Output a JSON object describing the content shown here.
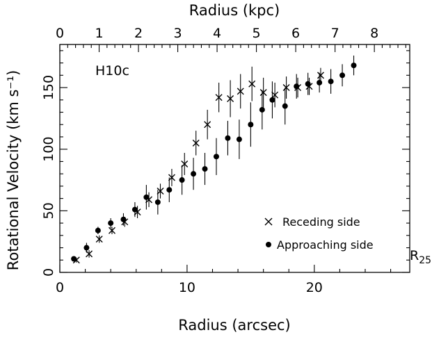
{
  "chart_data": {
    "type": "scatter",
    "xlabel": "Radius (arcsec)",
    "ylabel": "Rotational Velocity (km s⁻¹)",
    "top_xlabel": "Radius (kpc)",
    "xlim": [
      0,
      27.5
    ],
    "ylim": [
      0,
      185
    ],
    "top_xlim": [
      0,
      8.9
    ],
    "x_ticks": [
      0,
      10,
      20
    ],
    "y_ticks": [
      0,
      50,
      100,
      150
    ],
    "top_x_ticks": [
      0,
      1,
      2,
      3,
      4,
      5,
      6,
      7,
      8
    ],
    "annotation": "H10c",
    "r25_label": "R",
    "r25_sub": "25",
    "grid": false,
    "legend_position": "lower-right",
    "series": [
      {
        "name": "Receding side",
        "marker": "cross",
        "points": [
          {
            "x": 1.3,
            "y": 10,
            "err": 2
          },
          {
            "x": 2.3,
            "y": 15,
            "err": 3
          },
          {
            "x": 3.1,
            "y": 27,
            "err": 3
          },
          {
            "x": 4.1,
            "y": 34,
            "err": 3
          },
          {
            "x": 5.1,
            "y": 41,
            "err": 4
          },
          {
            "x": 6.1,
            "y": 49,
            "err": 5
          },
          {
            "x": 7.0,
            "y": 59,
            "err": 6
          },
          {
            "x": 7.9,
            "y": 66,
            "err": 6
          },
          {
            "x": 8.8,
            "y": 77,
            "err": 7
          },
          {
            "x": 9.8,
            "y": 88,
            "err": 9
          },
          {
            "x": 10.7,
            "y": 105,
            "err": 10
          },
          {
            "x": 11.6,
            "y": 120,
            "err": 12
          },
          {
            "x": 12.5,
            "y": 142,
            "err": 12
          },
          {
            "x": 13.4,
            "y": 141,
            "err": 15
          },
          {
            "x": 14.2,
            "y": 147,
            "err": 14
          },
          {
            "x": 15.1,
            "y": 153,
            "err": 14
          },
          {
            "x": 16.0,
            "y": 146,
            "err": 12
          },
          {
            "x": 16.9,
            "y": 144,
            "err": 10
          },
          {
            "x": 17.8,
            "y": 150,
            "err": 9
          },
          {
            "x": 18.7,
            "y": 150,
            "err": 8
          },
          {
            "x": 19.6,
            "y": 151,
            "err": 7
          },
          {
            "x": 20.5,
            "y": 160,
            "err": 6
          }
        ]
      },
      {
        "name": "Approaching side",
        "marker": "dot",
        "points": [
          {
            "x": 1.1,
            "y": 11,
            "err": 2
          },
          {
            "x": 2.1,
            "y": 20,
            "err": 4
          },
          {
            "x": 3.0,
            "y": 34,
            "err": 3
          },
          {
            "x": 4.0,
            "y": 40,
            "err": 4
          },
          {
            "x": 5.0,
            "y": 43,
            "err": 5
          },
          {
            "x": 5.9,
            "y": 51,
            "err": 6
          },
          {
            "x": 6.8,
            "y": 61,
            "err": 10
          },
          {
            "x": 7.7,
            "y": 57,
            "err": 10
          },
          {
            "x": 8.6,
            "y": 67,
            "err": 10
          },
          {
            "x": 9.6,
            "y": 75,
            "err": 12
          },
          {
            "x": 10.5,
            "y": 80,
            "err": 13
          },
          {
            "x": 11.4,
            "y": 84,
            "err": 13
          },
          {
            "x": 12.3,
            "y": 94,
            "err": 15
          },
          {
            "x": 13.2,
            "y": 109,
            "err": 14
          },
          {
            "x": 14.1,
            "y": 108,
            "err": 16
          },
          {
            "x": 15.0,
            "y": 120,
            "err": 18
          },
          {
            "x": 15.9,
            "y": 132,
            "err": 16
          },
          {
            "x": 16.7,
            "y": 140,
            "err": 15
          },
          {
            "x": 17.7,
            "y": 135,
            "err": 15
          },
          {
            "x": 18.6,
            "y": 151,
            "err": 10
          },
          {
            "x": 19.5,
            "y": 153,
            "err": 9
          },
          {
            "x": 20.4,
            "y": 154,
            "err": 8
          },
          {
            "x": 21.3,
            "y": 155,
            "err": 10
          },
          {
            "x": 22.2,
            "y": 160,
            "err": 9
          },
          {
            "x": 23.1,
            "y": 168,
            "err": 8
          }
        ]
      }
    ]
  }
}
